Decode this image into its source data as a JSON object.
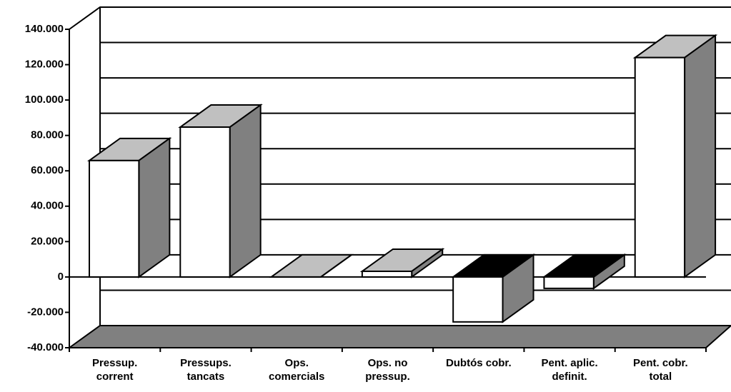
{
  "chart_data": {
    "type": "bar3d",
    "categories": [
      [
        "Pressup.",
        "corrent"
      ],
      [
        "Pressups.",
        "tancats"
      ],
      [
        "Ops.",
        "comercials"
      ],
      [
        "Ops. no",
        "pressup."
      ],
      [
        "Dubtós cobr."
      ],
      [
        "Pent. aplic.",
        "definit."
      ],
      [
        "Pent. cobr.",
        "total"
      ]
    ],
    "values": [
      65800,
      84700,
      0,
      3200,
      -25400,
      -6450,
      124000
    ],
    "colors": {
      "front": "#ffffff",
      "top": "#c0c0c0",
      "side": "#808080",
      "negative_top": "#000000",
      "floor": "#808080"
    },
    "ylim": [
      -40000,
      140000
    ],
    "yticks": [
      {
        "value": -40000,
        "label": "-40.000"
      },
      {
        "value": -20000,
        "label": "-20.000"
      },
      0,
      {
        "value": 20000,
        "label": "20.000"
      },
      {
        "value": 40000,
        "label": "40.000"
      },
      {
        "value": 60000,
        "label": "60.000"
      },
      {
        "value": 80000,
        "label": "80.000"
      },
      {
        "value": 100000,
        "label": "100.000"
      },
      {
        "value": 120000,
        "label": "120.000"
      },
      {
        "value": 140000,
        "label": "140.000"
      }
    ],
    "grid": true
  }
}
